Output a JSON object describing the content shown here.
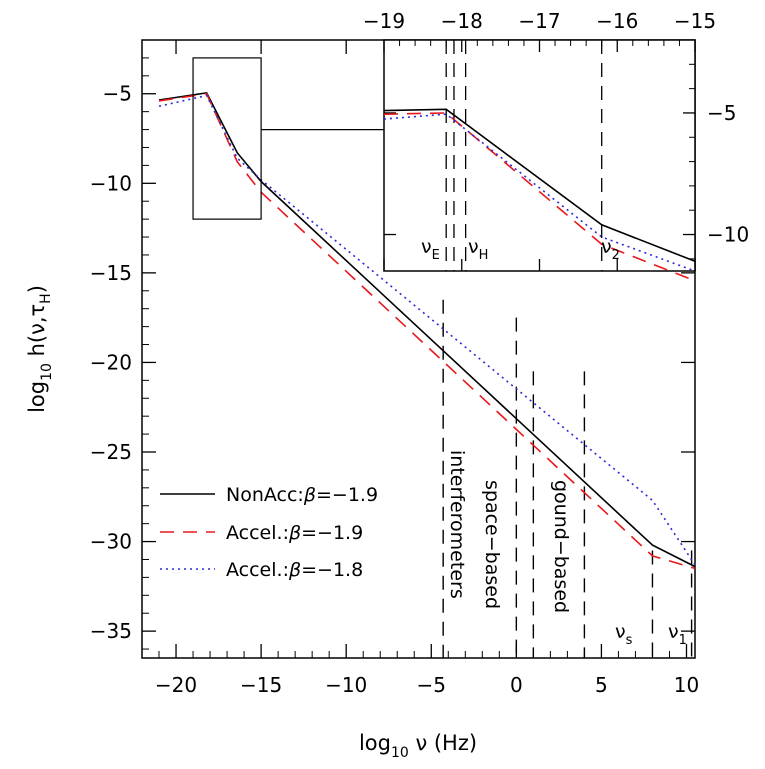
{
  "chart_data": [
    {
      "type": "line",
      "title": "",
      "xlabel": "log₁₀ ν (Hz)",
      "ylabel": "log₁₀ h(ν,τH)",
      "xlim": [
        -22,
        10.5
      ],
      "ylim": [
        -36.5,
        -2
      ],
      "x_ticks": [
        -20,
        -15,
        -10,
        -5,
        0,
        5,
        10
      ],
      "y_ticks": [
        -5,
        -10,
        -15,
        -20,
        -25,
        -30,
        -35
      ],
      "grid": false,
      "legend_position": "bottom-left",
      "series": [
        {
          "name": "NonAcc:β=−1.9",
          "color": "#000000",
          "dash": "solid",
          "x": [
            -21,
            -18.2,
            -16.4,
            -15,
            8,
            10.5
          ],
          "y": [
            -5.35,
            -4.95,
            -8.3,
            -9.9,
            -30.2,
            -31.4
          ]
        },
        {
          "name": "Accel.:β=−1.9",
          "color": "#e8181c",
          "dash": "dashed",
          "x": [
            -21,
            -18.2,
            -16.4,
            -15,
            8,
            10.5
          ],
          "y": [
            -5.4,
            -5.0,
            -8.8,
            -10.5,
            -30.8,
            -31.5
          ]
        },
        {
          "name": "Accel.:β=−1.8",
          "color": "#2a2ad8",
          "dash": "dotted",
          "x": [
            -21,
            -18.2,
            -16.4,
            -15,
            8,
            10.5
          ],
          "y": [
            -5.7,
            -5.1,
            -8.6,
            -9.8,
            -27.7,
            -31.3
          ]
        }
      ],
      "vlines": [
        {
          "x": -4.3,
          "y_top": -16.5,
          "label": "interferometers"
        },
        {
          "x": 0,
          "y_top": -17.5,
          "label": "space−based"
        },
        {
          "x": 1,
          "y_top": -20.5,
          "label": ""
        },
        {
          "x": 4,
          "y_top": -20.5,
          "label": "gound−based"
        },
        {
          "x": 8,
          "y_top": -30.5,
          "label": "νs"
        },
        {
          "x": 10.3,
          "y_top": -30.5,
          "label": "ν1"
        }
      ],
      "zoom_box": {
        "x": [
          -19,
          -15
        ],
        "y": [
          -12,
          -3
        ]
      }
    },
    {
      "type": "line",
      "title": "",
      "xlim": [
        -19,
        -15
      ],
      "ylim": [
        -11.5,
        -2
      ],
      "x_ticks": [
        -19,
        -18,
        -17,
        -16,
        -15
      ],
      "y_ticks": [
        -5,
        -10
      ],
      "x_axis_position": "top",
      "y_axis_position": "right",
      "series": [
        {
          "name": "NonAcc:β=−1.9",
          "color": "#000000",
          "dash": "solid",
          "x": [
            -19,
            -18.2,
            -16.2,
            -15
          ],
          "y": [
            -4.9,
            -4.85,
            -9.6,
            -11.1
          ]
        },
        {
          "name": "Accel.:β=−1.9",
          "color": "#e8181c",
          "dash": "dashed",
          "x": [
            -19,
            -18.2,
            -16.2,
            -15
          ],
          "y": [
            -5.05,
            -5.0,
            -10.4,
            -11.9
          ]
        },
        {
          "name": "Accel.:β=−1.8",
          "color": "#2a2ad8",
          "dash": "dotted",
          "x": [
            -19,
            -18.2,
            -16.2,
            -15
          ],
          "y": [
            -5.25,
            -5.05,
            -10.1,
            -11.5
          ]
        }
      ],
      "vlines": [
        {
          "x": -18.2,
          "label": "νE"
        },
        {
          "x": -18.1,
          "label": ""
        },
        {
          "x": -17.95,
          "label": "νH"
        },
        {
          "x": -16.2,
          "label": "ν2"
        }
      ]
    }
  ],
  "ylabel_parts": {
    "prefix": "log",
    "base": "10",
    "mid": " h(ν,τ",
    "sub": "H",
    "suffix": ")"
  },
  "xlabel_parts": {
    "prefix": "log",
    "base": "10",
    "suffix": " ν (Hz)"
  },
  "vline_labels": {
    "nu_s": {
      "main": "ν",
      "sub": "s"
    },
    "nu_1": {
      "main": "ν",
      "sub": "1"
    },
    "nu_E": {
      "main": "ν",
      "sub": "E"
    },
    "nu_H": {
      "main": "ν",
      "sub": "H"
    },
    "nu_2": {
      "main": "ν",
      "sub": "2"
    }
  },
  "legend_labels": {
    "l0": {
      "text": "NonAcc:",
      "beta": "β",
      "value": "=−1.9"
    },
    "l1": {
      "text": "Accel.:",
      "beta": "β",
      "value": "=−1.9"
    },
    "l2": {
      "text": "Accel.:",
      "beta": "β",
      "value": "=−1.8"
    }
  },
  "tick_text": {
    "main_x": [
      "−20",
      "−15",
      "−10",
      "−5",
      "0",
      "5",
      "10"
    ],
    "main_y": [
      "−5",
      "−10",
      "−15",
      "−20",
      "−25",
      "−30",
      "−35"
    ],
    "inset_x": [
      "−19",
      "−18",
      "−17",
      "−16",
      "−15"
    ],
    "inset_y": [
      "−5",
      "−10"
    ]
  },
  "region_labels": {
    "interferometers": "interferometers",
    "space_based": "space−based",
    "ground_based": "gound−based"
  }
}
